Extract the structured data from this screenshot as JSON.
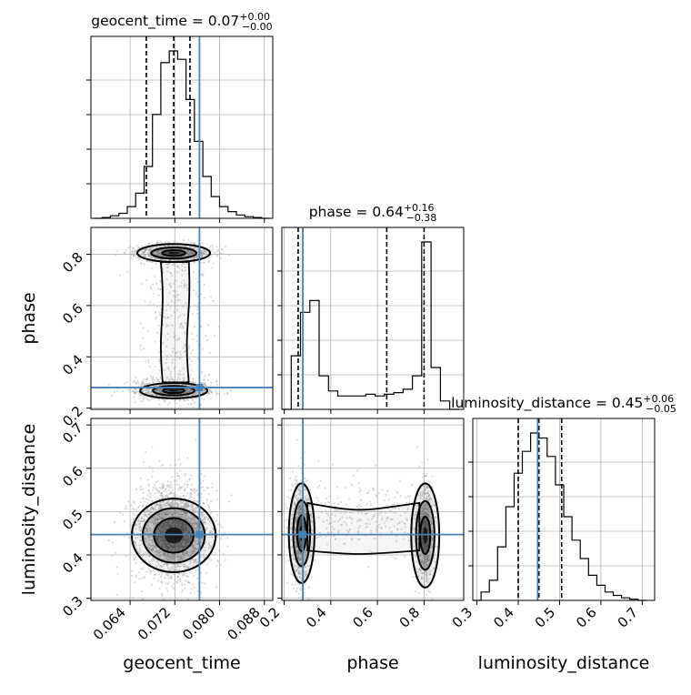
{
  "chart_data": {
    "type": "corner",
    "parameters": [
      {
        "name": "geocent_time",
        "range": [
          0.057,
          0.0895
        ],
        "ticks": [
          0.064,
          0.072,
          0.08,
          0.088
        ],
        "tick_labels": [
          "0.064",
          "0.072",
          "0.080",
          "0.088"
        ],
        "truth": 0.0764,
        "quantiles": [
          0.0669,
          0.0718,
          0.0747
        ],
        "title_main": "geocent_time = 0.07",
        "title_plus": "+0.00",
        "title_minus": "−0.00",
        "hist_edges": [
          0.0575,
          0.059,
          0.0605,
          0.062,
          0.0635,
          0.065,
          0.0665,
          0.068,
          0.0695,
          0.071,
          0.0725,
          0.074,
          0.0755,
          0.077,
          0.0785,
          0.08,
          0.0815,
          0.083,
          0.0845,
          0.086,
          0.0875,
          0.089
        ],
        "hist_counts": [
          0,
          0.5,
          1.5,
          3,
          7,
          15,
          31,
          62,
          93,
          100,
          95,
          71,
          46,
          25,
          13,
          7,
          4,
          2,
          1,
          0.5,
          0
        ]
      },
      {
        "name": "phase",
        "range": [
          0.19,
          0.97
        ],
        "ticks": [
          0.2,
          0.4,
          0.6,
          0.8
        ],
        "tick_labels": [
          "0.2",
          "0.4",
          "0.6",
          "0.8"
        ],
        "truth": 0.28,
        "quantiles": [
          0.26,
          0.64,
          0.8
        ],
        "title_main": "phase = 0.64",
        "title_plus": "+0.16",
        "title_minus": "−0.38",
        "hist_edges": [
          0.19,
          0.23,
          0.27,
          0.31,
          0.35,
          0.39,
          0.43,
          0.47,
          0.51,
          0.55,
          0.59,
          0.63,
          0.67,
          0.71,
          0.75,
          0.79,
          0.83,
          0.87,
          0.91,
          0.95
        ],
        "hist_counts": [
          0,
          32,
          58,
          65,
          20,
          11,
          8,
          8,
          8,
          9,
          8,
          9,
          10,
          12,
          20,
          100,
          25,
          5,
          0
        ]
      },
      {
        "name": "luminosity_distance",
        "range": [
          0.29,
          0.73
        ],
        "ticks": [
          0.3,
          0.4,
          0.5,
          0.6,
          0.7
        ],
        "tick_labels": [
          "0.3",
          "0.4",
          "0.5",
          "0.6",
          "0.7"
        ],
        "truth": 0.447,
        "quantiles": [
          0.4,
          0.45,
          0.505
        ],
        "title_main": "luminosity_distance = 0.45",
        "title_plus": "+0.06",
        "title_minus": "−0.05",
        "hist_edges": [
          0.29,
          0.31,
          0.33,
          0.35,
          0.37,
          0.39,
          0.41,
          0.43,
          0.45,
          0.47,
          0.49,
          0.51,
          0.53,
          0.55,
          0.57,
          0.59,
          0.61,
          0.63,
          0.65,
          0.67,
          0.69,
          0.71
        ],
        "hist_counts": [
          0,
          5,
          12,
          32,
          56,
          76,
          89,
          100,
          97,
          86,
          69,
          50,
          36,
          25,
          15,
          9,
          5,
          3,
          1.5,
          0.7,
          0
        ]
      }
    ],
    "scale_note": "the same row range applies to each parameter in its 2-D panels",
    "row_ranges": {
      "phase": [
        0.195,
        0.905
      ],
      "luminosity_distance": [
        0.295,
        0.715
      ]
    },
    "row_ticks": {
      "phase": [
        0.2,
        0.4,
        0.6,
        0.8
      ],
      "luminosity_distance": [
        0.3,
        0.4,
        0.5,
        0.6,
        0.7
      ]
    },
    "row_tick_labels": {
      "phase": [
        "0.2",
        "0.4",
        "0.6",
        "0.8"
      ],
      "luminosity_distance": [
        "0.3",
        "0.4",
        "0.5",
        "0.6",
        "0.7"
      ]
    },
    "colors": {
      "truth": "#4682b4",
      "contour": "#000000",
      "density": "#404040"
    },
    "grid": true
  }
}
